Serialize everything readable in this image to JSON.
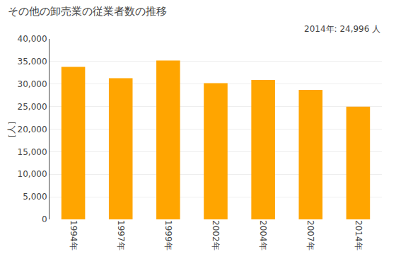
{
  "chart_data": {
    "type": "bar",
    "title": "その他の卸売業の従業者数の推移",
    "ylabel": "［人］",
    "annotations": [
      "2014年: 24,996 人"
    ],
    "categories": [
      "1994年",
      "1997年",
      "1999年",
      "2002年",
      "2004年",
      "2007年",
      "2014年"
    ],
    "values": [
      33800,
      31300,
      35200,
      30200,
      30900,
      28700,
      24996
    ],
    "color": "#FFA500",
    "ylim": [
      0,
      40000
    ],
    "yticks": [
      0,
      {
        "value": 5000,
        "label": "5,000"
      },
      {
        "value": 10000,
        "label": "10,000"
      },
      {
        "value": 15000,
        "label": "15,000"
      },
      {
        "value": 20000,
        "label": "20,000"
      },
      {
        "value": 25000,
        "label": "25,000"
      },
      {
        "value": 30000,
        "label": "30,000"
      },
      {
        "value": 35000,
        "label": "35,000"
      },
      {
        "value": 40000,
        "label": "40,000"
      }
    ],
    "grid": true
  }
}
